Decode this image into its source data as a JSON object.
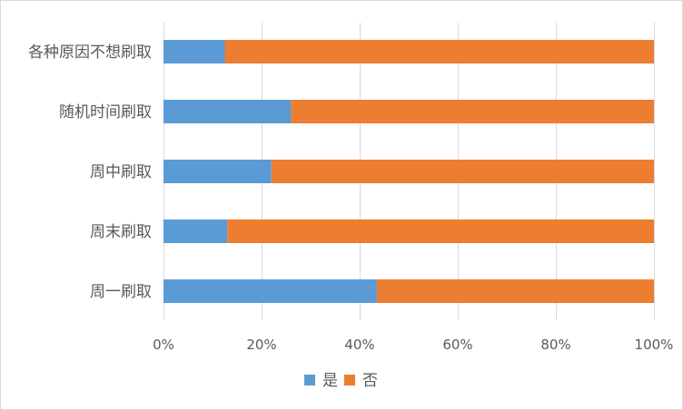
{
  "chart_data": {
    "type": "bar",
    "orientation": "horizontal",
    "stacked": "percent",
    "categories": [
      "周一刷取",
      "周末刷取",
      "周中刷取",
      "随机时间刷取",
      "各种原因不想刷取"
    ],
    "series": [
      {
        "name": "是",
        "color": "#5b9bd5",
        "values": [
          43.5,
          13,
          22,
          26,
          12.5
        ]
      },
      {
        "name": "否",
        "color": "#ed7d31",
        "values": [
          56.5,
          87,
          78,
          74,
          87.5
        ]
      }
    ],
    "xlim": [
      0,
      100
    ],
    "xticks": [
      "0%",
      "20%",
      "40%",
      "60%",
      "80%",
      "100%"
    ],
    "grid": "vertical",
    "legend": "bottom",
    "title": "",
    "xlabel": "",
    "ylabel": ""
  }
}
